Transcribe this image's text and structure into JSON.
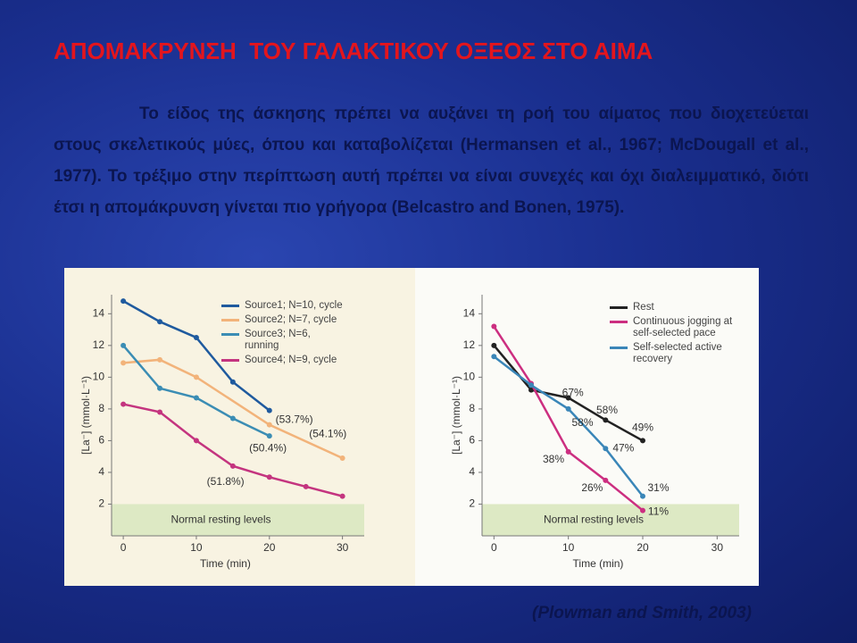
{
  "slide": {
    "title": "ΑΠΟΜΑΚΡΥΝΣΗ  ΤΟΥ ΓΑΛΑΚΤΙΚΟΥ ΟΞΕΟΣ ΣΤΟ ΑΙΜΑ",
    "body": "Το είδος της άσκησης πρέπει να αυξάνει τη ροή του αίματος που διοχετεύεται στους σκελετικούς μύες, όπου και καταβολίζεται (Hermansen et al., 1967; McDougall et al., 1977). Το τρέξιμο στην περίπτωση αυτή πρέπει να είναι συνεχές και όχι διαλειμματικό, διότι έτσι η απομάκρυνση γίνεται πιο γρήγορα (Belcastro and Bonen, 1975).",
    "citation": "(Plowman and Smith, 2003)"
  },
  "chart_data": [
    {
      "type": "line",
      "x_label": "Time (min)",
      "y_label": "[La⁻] (mmol·L⁻¹)",
      "xlim": [
        -1.6,
        32
      ],
      "ylim": [
        0,
        15.2
      ],
      "xticks": [
        0,
        10,
        20,
        30
      ],
      "yticks": [
        2,
        4,
        6,
        8,
        10,
        12,
        14
      ],
      "band": {
        "label": "Normal resting levels",
        "range": [
          0,
          2
        ],
        "color": "#dde9c4"
      },
      "series": [
        {
          "name": "Source1; N=10, cycle",
          "color": "#1f5a9e",
          "x": [
            0,
            5,
            10,
            15,
            20
          ],
          "values": [
            14.8,
            13.5,
            12.5,
            9.7,
            7.9
          ]
        },
        {
          "name": "Source2; N=7, cycle",
          "color": "#f2b37a",
          "x": [
            0,
            5,
            10,
            20,
            30
          ],
          "values": [
            10.9,
            11.1,
            10.0,
            7.0,
            4.9
          ]
        },
        {
          "name": "Source3; N=6, running",
          "color": "#3b8db4",
          "x": [
            0,
            5,
            10,
            15,
            20
          ],
          "values": [
            12.0,
            9.3,
            8.7,
            7.4,
            6.3
          ]
        },
        {
          "name": "Source4; N=9, cycle",
          "color": "#c4347f",
          "x": [
            0,
            5,
            10,
            15,
            20,
            25,
            30
          ],
          "values": [
            8.3,
            7.8,
            6.0,
            4.4,
            3.7,
            3.1,
            2.5
          ]
        }
      ],
      "annotations": [
        {
          "text": "(53.7%)",
          "x": 23.4,
          "y": 7.3
        },
        {
          "text": "(54.1%)",
          "x": 28.0,
          "y": 6.4
        },
        {
          "text": "(50.4%)",
          "x": 19.8,
          "y": 5.5
        },
        {
          "text": "(51.8%)",
          "x": 14.0,
          "y": 3.4
        }
      ]
    },
    {
      "type": "line",
      "x_label": "Time (min)",
      "y_label": "[La⁻] (mmol·L⁻¹)",
      "xlim": [
        -1.6,
        32
      ],
      "ylim": [
        0,
        15.2
      ],
      "xticks": [
        0,
        10,
        20,
        30
      ],
      "yticks": [
        2,
        4,
        6,
        8,
        10,
        12,
        14
      ],
      "band": {
        "label": "Normal resting levels",
        "range": [
          0,
          2
        ],
        "color": "#dde9c4"
      },
      "series": [
        {
          "name": "Rest",
          "color": "#222222",
          "x": [
            0,
            5,
            10,
            15,
            20
          ],
          "values": [
            12.0,
            9.2,
            8.7,
            7.3,
            6.0
          ]
        },
        {
          "name": "Continuous jogging at self-selected pace",
          "color": "#cc2e80",
          "x": [
            0,
            5,
            10,
            15,
            20
          ],
          "values": [
            13.2,
            9.6,
            5.3,
            3.5,
            1.6
          ]
        },
        {
          "name": "Self-selected active recovery",
          "color": "#3a86b8",
          "x": [
            0,
            5,
            10,
            15,
            20
          ],
          "values": [
            11.3,
            9.5,
            8.0,
            5.5,
            2.5
          ]
        }
      ],
      "annotations": [
        {
          "text": "67%",
          "x": 10.6,
          "y": 9.0
        },
        {
          "text": "58%",
          "x": 15.2,
          "y": 7.9
        },
        {
          "text": "49%",
          "x": 20.0,
          "y": 6.8
        },
        {
          "text": "58%",
          "x": 11.9,
          "y": 7.1
        },
        {
          "text": "47%",
          "x": 17.4,
          "y": 5.5
        },
        {
          "text": "31%",
          "x": 22.1,
          "y": 3.0
        },
        {
          "text": "38%",
          "x": 8.0,
          "y": 4.8
        },
        {
          "text": "26%",
          "x": 13.2,
          "y": 3.0
        },
        {
          "text": "11%",
          "x": 22.1,
          "y": 1.5
        }
      ]
    }
  ]
}
